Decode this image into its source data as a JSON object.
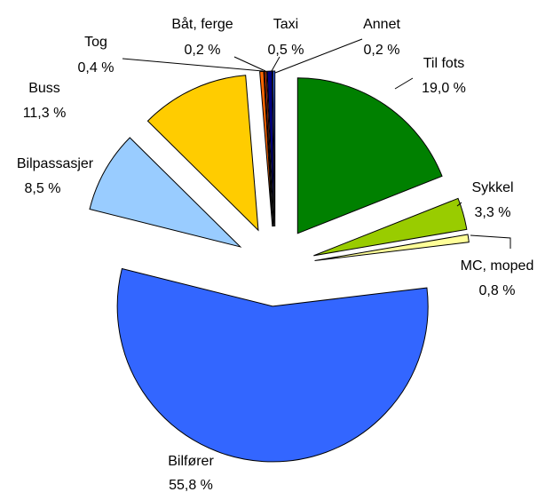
{
  "chart_data": {
    "type": "pie",
    "categories": [
      "Til fots",
      "Sykkel",
      "MC, moped",
      "Bilfører",
      "Bilpassasjer",
      "Buss",
      "Tog",
      "Båt, ferge",
      "Taxi",
      "Annet"
    ],
    "values": [
      19.0,
      3.3,
      0.8,
      55.8,
      8.5,
      11.3,
      0.4,
      0.2,
      0.5,
      0.2
    ],
    "value_labels": [
      "19,0 %",
      "3,3 %",
      "0,8 %",
      "55,8 %",
      "8,5 %",
      "11,3 %",
      "0,4 %",
      "0,2 %",
      "0,5 %",
      "0,2 %"
    ],
    "colors": [
      "#008000",
      "#99cc00",
      "#ffff99",
      "#3366ff",
      "#99ccff",
      "#ffcc00",
      "#ff6600",
      "#cc3300",
      "#000080",
      "#3366ff"
    ]
  }
}
